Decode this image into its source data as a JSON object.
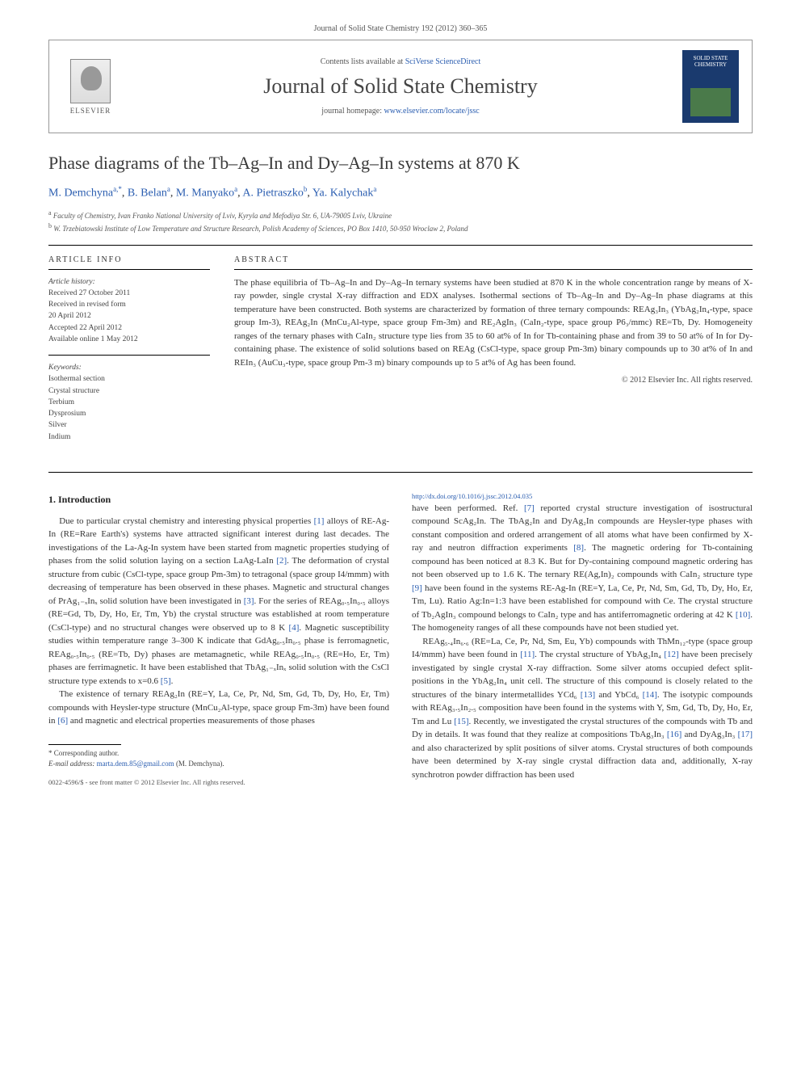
{
  "journal_ref_top": "Journal of Solid State Chemistry 192 (2012) 360–365",
  "header": {
    "contents_pre": "Contents lists available at ",
    "contents_link": "SciVerse ScienceDirect",
    "journal_name": "Journal of Solid State Chemistry",
    "homepage_pre": "journal homepage: ",
    "homepage_link": "www.elsevier.com/locate/jssc",
    "elsevier_label": "ELSEVIER",
    "cover_text": "SOLID STATE CHEMISTRY"
  },
  "title": "Phase diagrams of the Tb–Ag–In and Dy–Ag–In systems at 870 K",
  "authors": {
    "a1": "M. Demchyna",
    "a1_sup": "a,*",
    "a2": "B. Belan",
    "a2_sup": "a",
    "a3": "M. Manyako",
    "a3_sup": "a",
    "a4": "A. Pietraszko",
    "a4_sup": "b",
    "a5": "Ya. Kalychak",
    "a5_sup": "a"
  },
  "affiliations": {
    "a": "Faculty of Chemistry, Ivan Franko National University of Lviv, Kyryla and Mefodiya Str. 6, UA-79005 Lviv, Ukraine",
    "b": "W. Trzebiatowski Institute of Low Temperature and Structure Research, Polish Academy of Sciences, PO Box 1410, 50-950 Wroclaw 2, Poland"
  },
  "info": {
    "heading": "ARTICLE INFO",
    "history_label": "Article history:",
    "h1": "Received 27 October 2011",
    "h2": "Received in revised form",
    "h3": "20 April 2012",
    "h4": "Accepted 22 April 2012",
    "h5": "Available online 1 May 2012",
    "keywords_label": "Keywords:",
    "k1": "Isothermal section",
    "k2": "Crystal structure",
    "k3": "Terbium",
    "k4": "Dysprosium",
    "k5": "Silver",
    "k6": "Indium"
  },
  "abstract": {
    "heading": "ABSTRACT",
    "text": "The phase equilibria of Tb–Ag–In and Dy–Ag–In ternary systems have been studied at 870 K in the whole concentration range by means of X-ray powder, single crystal X-ray diffraction and EDX analyses. Isothermal sections of Tb–Ag–In and Dy–Ag–In phase diagrams at this temperature have been constructed. Both systems are characterized by formation of three ternary compounds: REAg₃In₃ (YbAg₂In₄-type, space group Im-3), REAg₂In (MnCu₂Al-type, space group Fm-3m) and RE₂AgIn₃ (CaIn₂-type, space group P6₃/mmc) RE=Tb, Dy. Homogeneity ranges of the ternary phases with CaIn₂ structure type lies from 35 to 60 at% of In for Tb-containing phase and from 39 to 50 at% of In for Dy-containing phase. The existence of solid solutions based on REAg (CsCl-type, space group Pm-3m) binary compounds up to 30 at% of In and REIn₃ (AuCu₃-type, space group Pm-3 m) binary compounds up to 5 at% of Ag has been found.",
    "copyright": "© 2012 Elsevier Inc. All rights reserved."
  },
  "body": {
    "section1_heading": "1. Introduction",
    "p1a": "Due to particular crystal chemistry and interesting physical properties ",
    "p1_ref1": "[1]",
    "p1b": " alloys of RE-Ag-In (RE=Rare Earth's) systems have attracted significant interest during last decades. The investigations of the La-Ag-In system have been started from magnetic properties studying of phases from the solid solution laying on a section LaAg-LaIn ",
    "p1_ref2": "[2]",
    "p1c": ". The deformation of crystal structure from cubic (CsCl-type, space group Pm-3m) to tetragonal (space group I4/mmm) with decreasing of temperature has been observed in these phases. Magnetic and structural changes of PrAg₁₋ₓInₓ solid solution have been investigated in ",
    "p1_ref3": "[3]",
    "p1d": ". For the series of REAg₀.₅In₀.₅ alloys (RE=Gd, Tb, Dy, Ho, Er, Tm, Yb) the crystal structure was established at room temperature (CsCl-type) and no structural changes were observed up to 8 K ",
    "p1_ref4": "[4]",
    "p1e": ". Magnetic susceptibility studies within temperature range 3–300 K indicate that GdAg₀.₅In₀.₅ phase is ferromagnetic, REAg₀.₅In₀.₅ (RE=Tb, Dy) phases are metamagnetic, while REAg₀.₅In₀.₅ (RE=Ho, Er, Tm) phases are ferrimagnetic. It have been established that TbAg₁₋ₓInₓ solid solution with the CsCl structure type extends to x=0.6 ",
    "p1_ref5": "[5]",
    "p1f": ".",
    "p2a": "The existence of ternary REAg₂In (RE=Y, La, Ce, Pr, Nd, Sm, Gd, Tb, Dy, Ho, Er, Tm) compounds with Heysler-type structure (MnCu₂Al-type, space group Fm-3m) have been found in ",
    "p2_ref6": "[6]",
    "p2b": " and magnetic and electrical properties measurements of those phases ",
    "p3a": "have been performed. Ref. ",
    "p3_ref7": "[7]",
    "p3b": " reported crystal structure investigation of isostructural compound ScAg₂In. The TbAg₂In and DyAg₂In compounds are Heysler-type phases with constant composition and ordered arrangement of all atoms what have been confirmed by X-ray and neutron diffraction experiments ",
    "p3_ref8": "[8]",
    "p3c": ". The magnetic ordering for Tb-containing compound has been noticed at 8.3 K. But for Dy-containing compound magnetic ordering has not been observed up to 1.6 K. The ternary RE(Ag,In)₂ compounds with CaIn₂ structure type ",
    "p3_ref9": "[9]",
    "p3d": " have been found in the systems RE-Ag-In (RE=Y, La, Ce, Pr, Nd, Sm, Gd, Tb, Dy, Ho, Er, Tm, Lu). Ratio Ag:In=1:3 have been established for compound with Ce. The crystal structure of Tb₂AgIn₃ compound belongs to CaIn₂ type and has antiferromagnetic ordering at 42 K ",
    "p3_ref10": "[10]",
    "p3e": ". The homogeneity ranges of all these compounds have not been studied yet.",
    "p4a": "REAg₅.₄In₆.₆ (RE=La, Ce, Pr, Nd, Sm, Eu, Yb) compounds with ThMn₁₂-type (space group I4/mmm) have been found in ",
    "p4_ref11": "[11]",
    "p4b": ". The crystal structure of YbAg₂In₄ ",
    "p4_ref12": "[12]",
    "p4c": " have been precisely investigated by single crystal X-ray diffraction. Some silver atoms occupied defect split-positions in the YbAg₂In₄ unit cell. The structure of this compound is closely related to the structures of the binary intermetallides YCd₆ ",
    "p4_ref13": "[13]",
    "p4d": " and YbCd₆ ",
    "p4_ref14": "[14]",
    "p4e": ". The isotypic compounds with REAg₃.₅In₂.₅ composition have been found in the systems with Y, Sm, Gd, Tb, Dy, Ho, Er, Tm and Lu ",
    "p4_ref15": "[15]",
    "p4f": ". Recently, we investigated the crystal structures of the compounds with Tb and Dy in details. It was found that they realize at compositions TbAg₃In₃ ",
    "p4_ref16": "[16]",
    "p4g": " and DyAg₃In₃ ",
    "p4_ref17": "[17]",
    "p4h": " and also characterized by split positions of silver atoms. Crystal structures of both compounds have been determined by X-ray single crystal diffraction data and, additionally, X-ray synchrotron powder diffraction has been used"
  },
  "footnote": {
    "corr_label": "* Corresponding author.",
    "email_label": "E-mail address: ",
    "email": "marta.dem.85@gmail.com",
    "email_name": " (M. Demchyna)."
  },
  "bottom": {
    "issn": "0022-4596/$ - see front matter © 2012 Elsevier Inc. All rights reserved.",
    "doi": "http://dx.doi.org/10.1016/j.jssc.2012.04.035"
  }
}
